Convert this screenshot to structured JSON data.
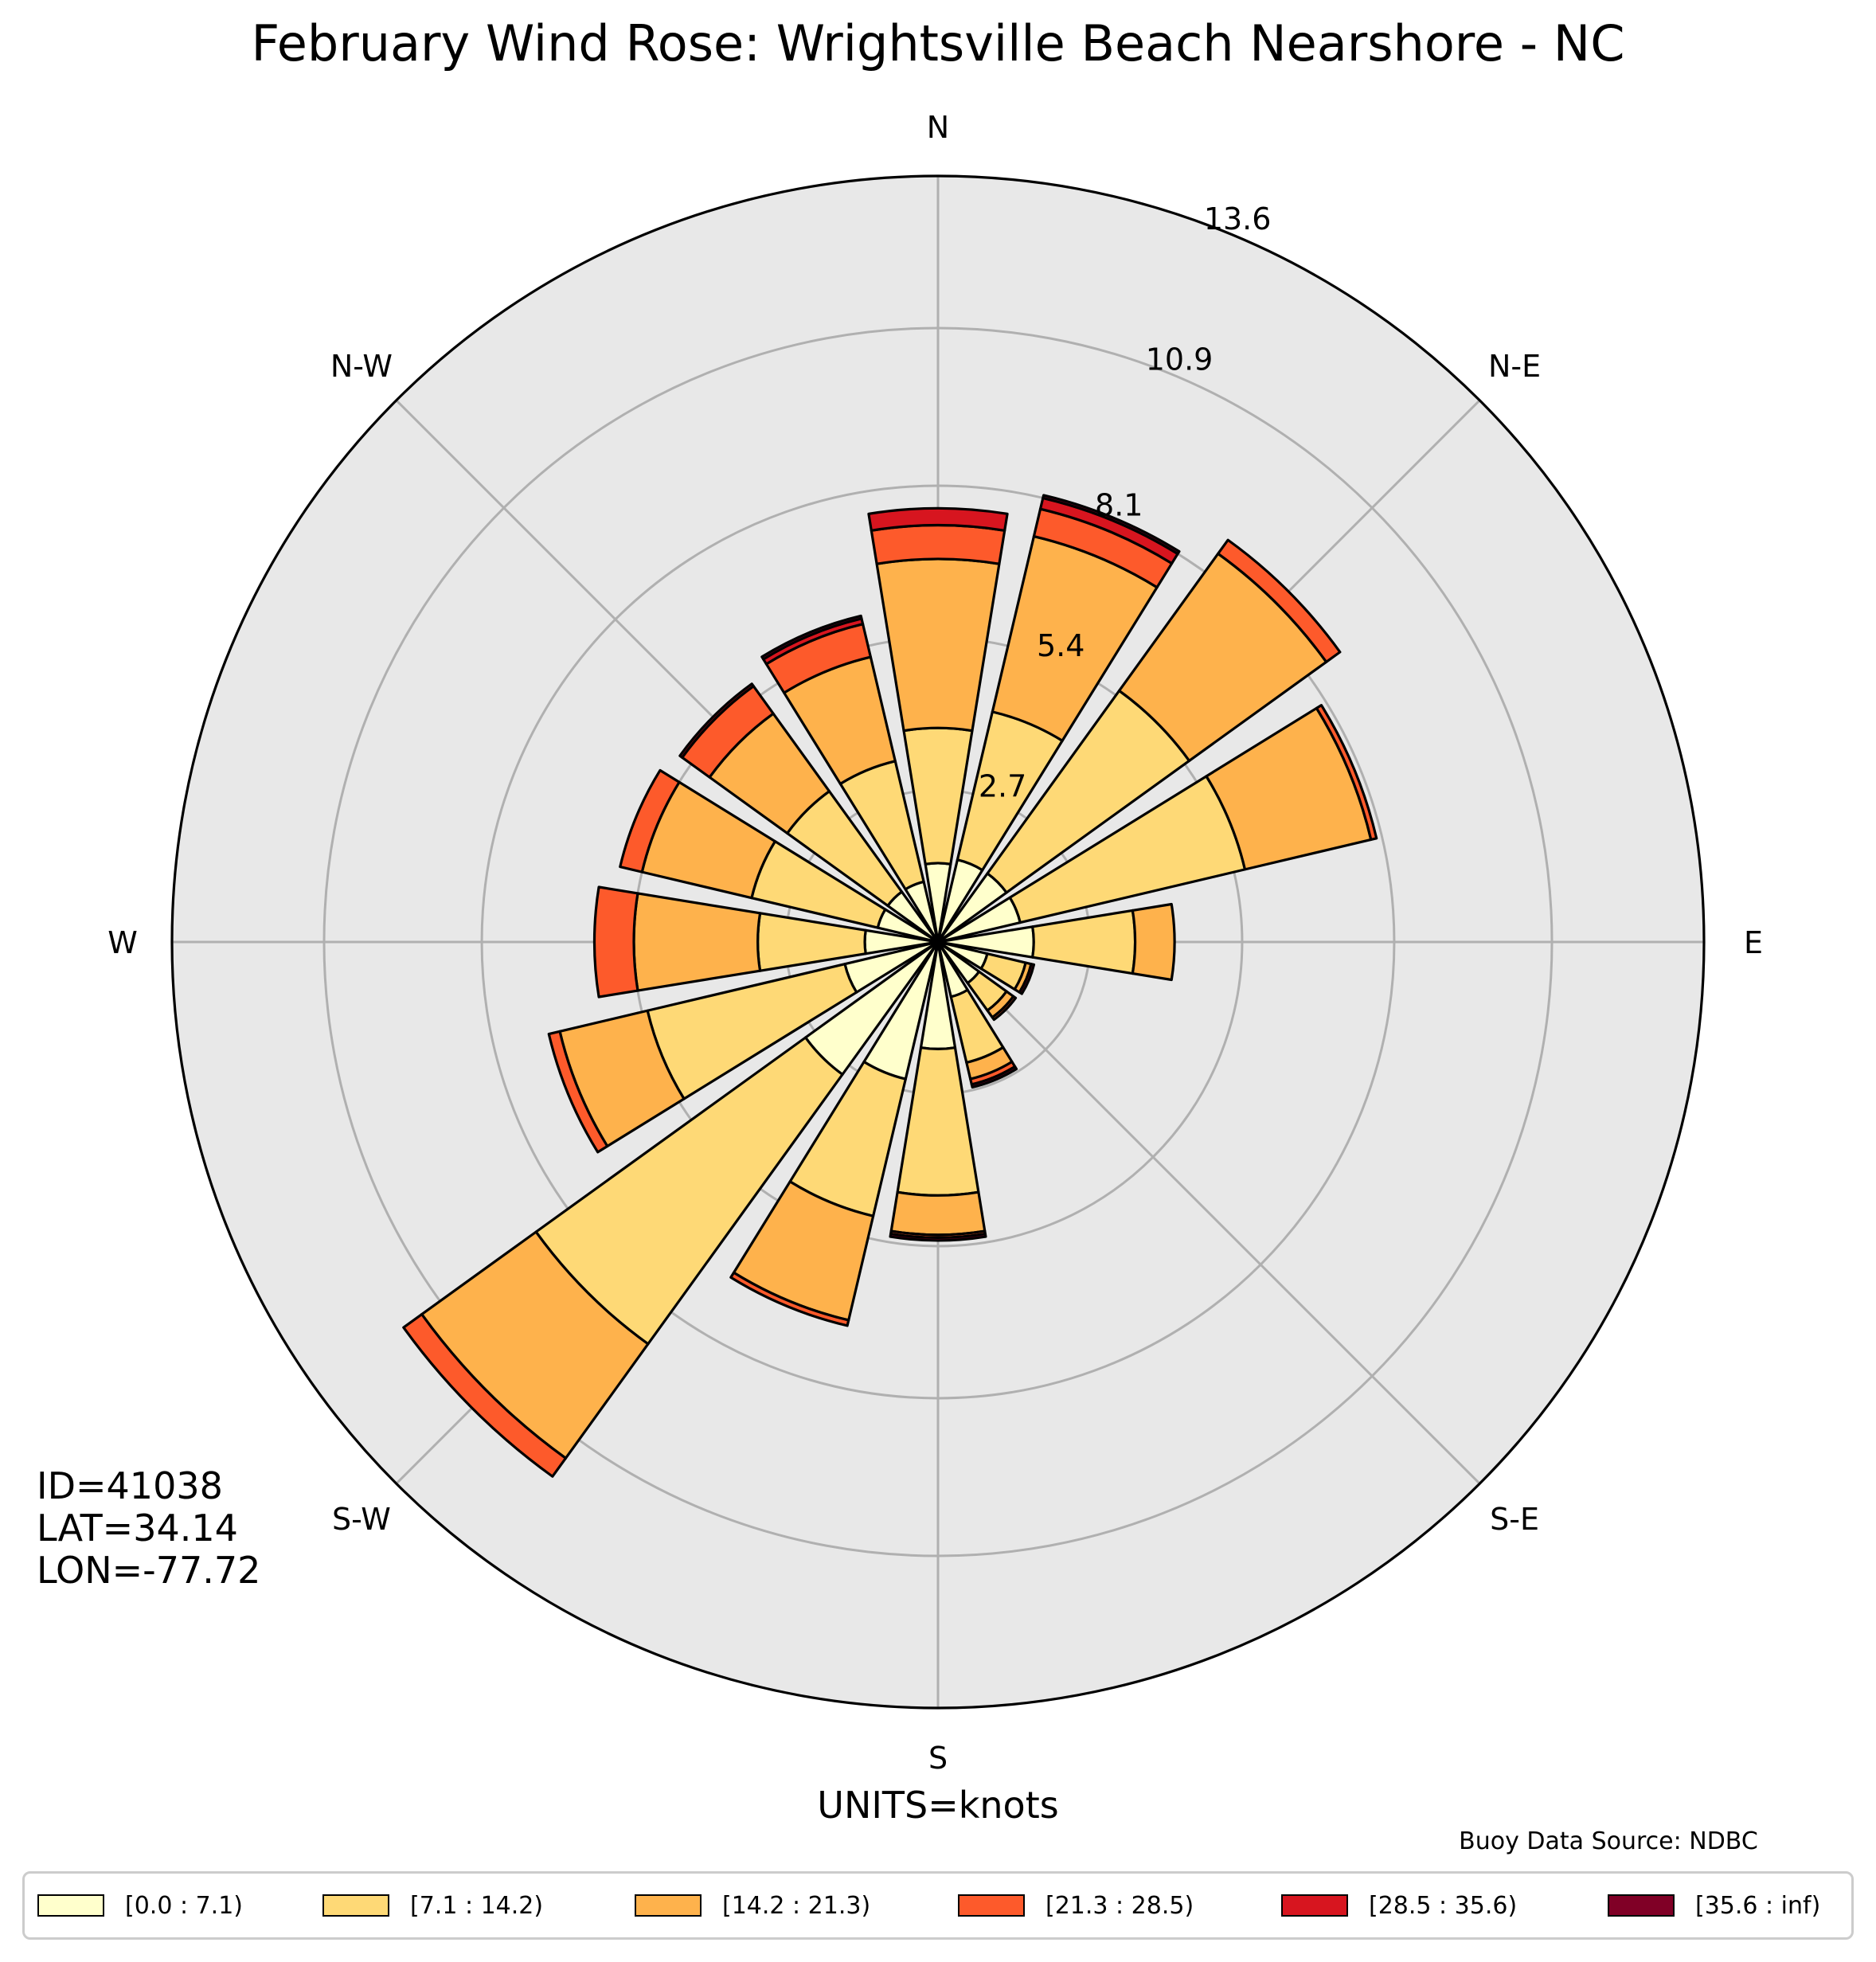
{
  "title": "February Wind Rose: Wrightsville Beach Nearshore - NC",
  "units_label": "UNITS=knots",
  "source_label": "Buoy Data Source: NDBC",
  "station": {
    "id": "ID=41038",
    "lat": "LAT=34.14",
    "lon": "LON=-77.72"
  },
  "chart_data": {
    "type": "wind-rose",
    "direction_labels": [
      "N",
      "N-E",
      "E",
      "S-E",
      "S",
      "S-W",
      "W",
      "N-W"
    ],
    "radial_tick_labels": [
      "2.7",
      "5.4",
      "8.1",
      "10.9",
      "13.6"
    ],
    "radial_ticks": [
      2.7,
      5.4,
      8.1,
      10.9,
      13.6
    ],
    "r_max": 13.6,
    "legend_placement": "bottom",
    "grid": true,
    "bins": [
      {
        "label": "[0.0 : 7.1)",
        "color": "#ffffcc"
      },
      {
        "label": "[7.1 : 14.2)",
        "color": "#fed976"
      },
      {
        "label": "[14.2 : 21.3)",
        "color": "#feb24c"
      },
      {
        "label": "[21.3 : 28.5)",
        "color": "#fd5a2b"
      },
      {
        "label": "[28.5 : 35.6)",
        "color": "#d7151f"
      },
      {
        "label": "[35.6 : inf)",
        "color": "#800026"
      }
    ],
    "directions_deg": [
      0,
      22.5,
      45,
      67.5,
      90,
      112.5,
      135,
      157.5,
      180,
      202.5,
      225,
      247.5,
      270,
      292.5,
      315,
      337.5
    ],
    "cumulative": [
      [
        1.4,
        3.8,
        6.8,
        7.4,
        7.7,
        7.7
      ],
      [
        1.5,
        4.2,
        7.4,
        7.9,
        8.1,
        8.15
      ],
      [
        1.5,
        5.5,
        8.5,
        8.8,
        8.8,
        8.8
      ],
      [
        1.5,
        5.6,
        7.9,
        8.0,
        8.0,
        8.0
      ],
      [
        1.7,
        3.5,
        4.2,
        4.2,
        4.2,
        4.2
      ],
      [
        0.9,
        1.6,
        1.7,
        1.7,
        1.7,
        1.75
      ],
      [
        0.9,
        1.5,
        1.65,
        1.7,
        1.7,
        1.7
      ],
      [
        1.0,
        2.2,
        2.5,
        2.6,
        2.6,
        2.65
      ],
      [
        1.9,
        4.5,
        5.2,
        5.25,
        5.25,
        5.3
      ],
      [
        2.5,
        5.0,
        6.9,
        7.0,
        7.0,
        7.0
      ],
      [
        2.9,
        8.8,
        11.3,
        11.7,
        11.7,
        11.7
      ],
      [
        1.7,
        5.3,
        6.9,
        7.1,
        7.1,
        7.1
      ],
      [
        1.3,
        3.2,
        5.4,
        6.1,
        6.1,
        6.1
      ],
      [
        1.1,
        3.4,
        5.4,
        5.8,
        5.8,
        5.8
      ],
      [
        1.1,
        3.3,
        5.0,
        5.6,
        5.65,
        5.65
      ],
      [
        1.1,
        3.3,
        5.2,
        5.8,
        5.9,
        5.95
      ]
    ]
  }
}
